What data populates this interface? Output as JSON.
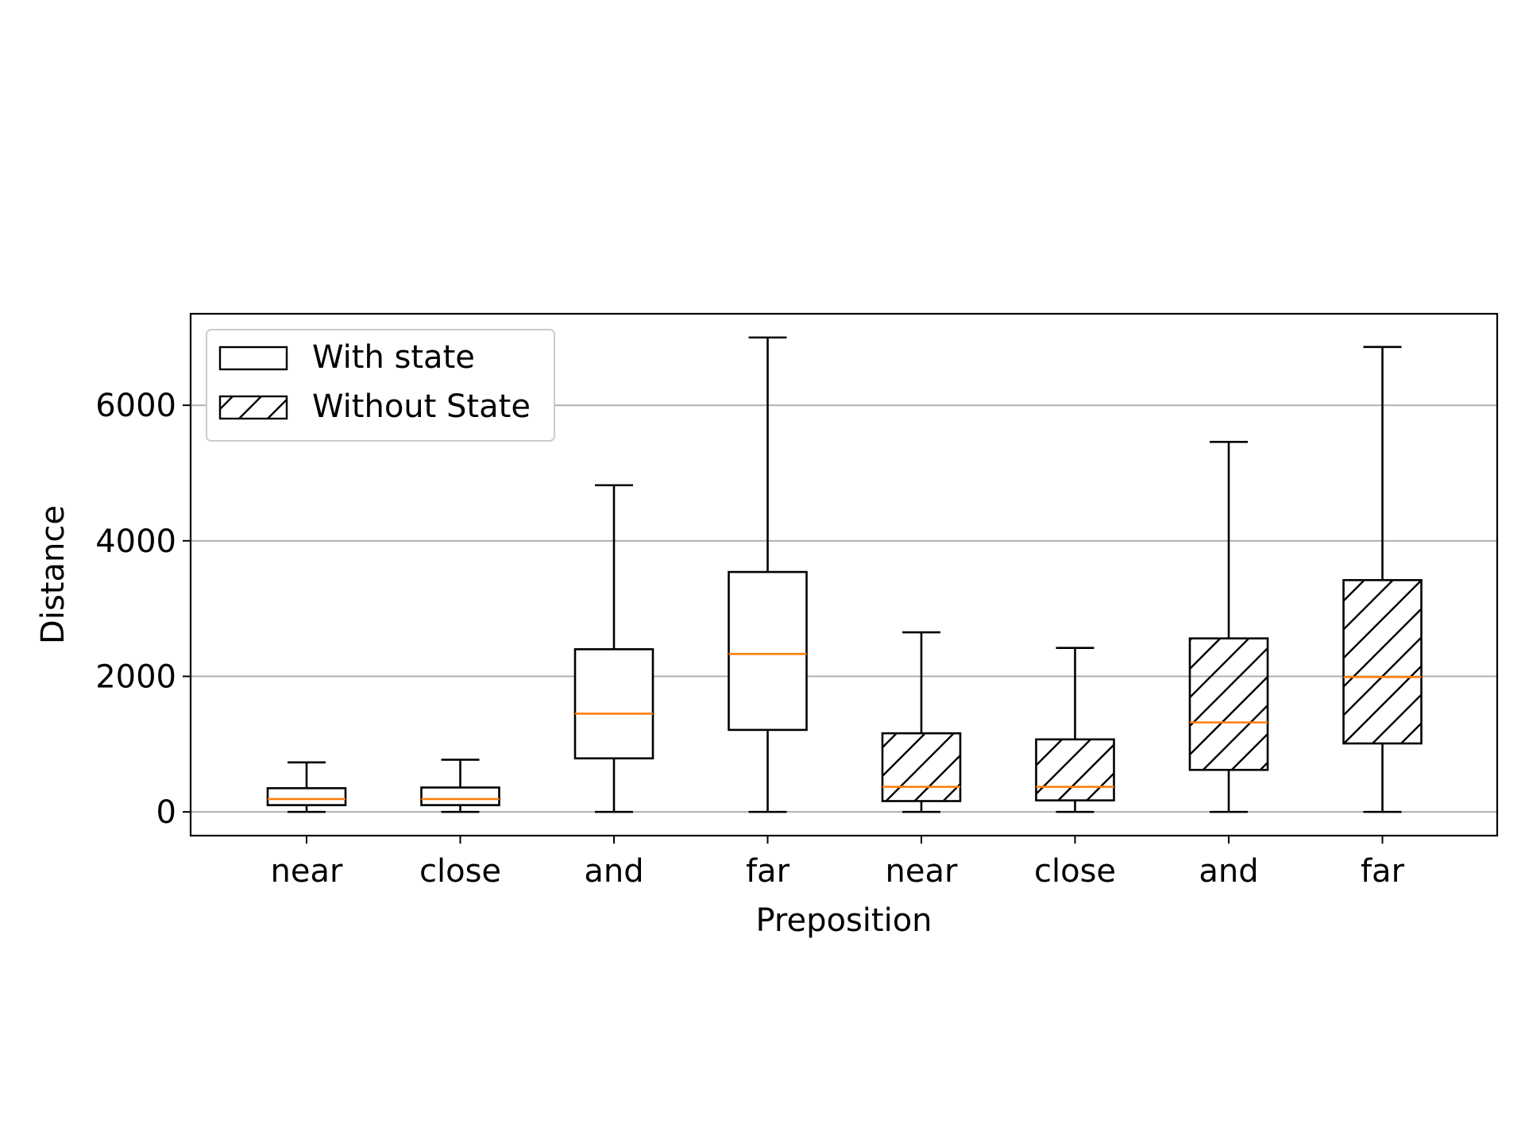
{
  "chart_data": {
    "type": "boxplot",
    "title": "",
    "xlabel": "Preposition",
    "ylabel": "Distance",
    "ylim": [
      -350,
      7350
    ],
    "yticks": [
      0,
      2000,
      4000,
      6000
    ],
    "grid": {
      "y": true,
      "x": false
    },
    "legend_position": "upper-left",
    "categories": [
      "near",
      "close",
      "and",
      "far",
      "near",
      "close",
      "and",
      "far"
    ],
    "series": [
      {
        "name": "With state",
        "hatch": false,
        "boxes": [
          {
            "category": "near",
            "whisker_low": 0,
            "q1": 100,
            "median": 190,
            "q3": 350,
            "whisker_high": 730
          },
          {
            "category": "close",
            "whisker_low": 0,
            "q1": 100,
            "median": 190,
            "q3": 360,
            "whisker_high": 770
          },
          {
            "category": "and",
            "whisker_low": 0,
            "q1": 790,
            "median": 1450,
            "q3": 2400,
            "whisker_high": 4820
          },
          {
            "category": "far",
            "whisker_low": 0,
            "q1": 1210,
            "median": 2330,
            "q3": 3540,
            "whisker_high": 7000
          }
        ]
      },
      {
        "name": "Without State",
        "hatch": true,
        "boxes": [
          {
            "category": "near",
            "whisker_low": 0,
            "q1": 160,
            "median": 370,
            "q3": 1160,
            "whisker_high": 2650
          },
          {
            "category": "close",
            "whisker_low": 0,
            "q1": 170,
            "median": 370,
            "q3": 1070,
            "whisker_high": 2420
          },
          {
            "category": "and",
            "whisker_low": 0,
            "q1": 620,
            "median": 1320,
            "q3": 2560,
            "whisker_high": 5460
          },
          {
            "category": "far",
            "whisker_low": 0,
            "q1": 1010,
            "median": 1990,
            "q3": 3420,
            "whisker_high": 6860
          }
        ]
      }
    ],
    "colors": {
      "box_edge": "#000000",
      "median": "#ff7f0e",
      "grid": "#b0b0b0",
      "legend_edge": "#cccccc"
    }
  }
}
